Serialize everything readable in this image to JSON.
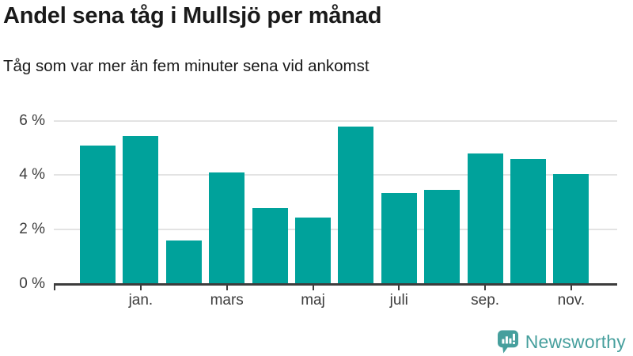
{
  "chart_data": {
    "type": "bar",
    "title": "Andel sena tåg i Mullsjö per månad",
    "subtitle": "Tåg som var mer än fem minuter sena vid ankomst",
    "unit": "%",
    "values": [
      5.1,
      5.45,
      1.6,
      4.1,
      2.8,
      2.45,
      5.8,
      3.35,
      3.45,
      4.8,
      4.6,
      4.05
    ],
    "x_ticks": [
      {
        "bar_index": 1,
        "label": "jan."
      },
      {
        "bar_index": 3,
        "label": "mars"
      },
      {
        "bar_index": 5,
        "label": "maj"
      },
      {
        "bar_index": 7,
        "label": "juli"
      },
      {
        "bar_index": 9,
        "label": "sep."
      },
      {
        "bar_index": 11,
        "label": "nov."
      }
    ],
    "y_ticks": [
      {
        "value": 0,
        "label": "0 %"
      },
      {
        "value": 2,
        "label": "2 %"
      },
      {
        "value": 4,
        "label": "4 %"
      },
      {
        "value": 6,
        "label": "6 %"
      }
    ],
    "ylim": [
      0,
      6
    ],
    "grid": true,
    "legend": "none",
    "bar_color": "#00a29b",
    "axis_color": "#3c3c3c",
    "gridline_color": "#e3e3e3",
    "label_color": "#3d3d3d"
  },
  "branding": {
    "logo_text": "Newsworthy",
    "logo_color": "#469f9d",
    "logo_icon": "speech-bubble-bar-chart"
  }
}
